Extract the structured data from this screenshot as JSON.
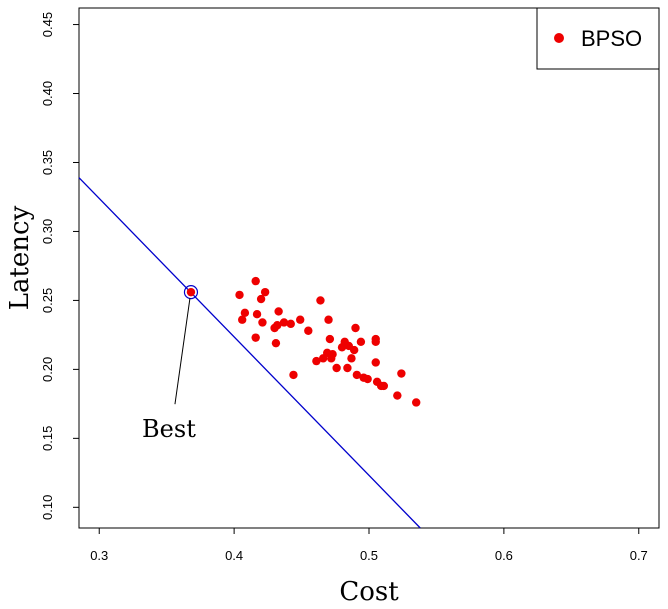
{
  "chart_data": {
    "type": "scatter",
    "xlabel": "Cost",
    "ylabel": "Latency",
    "xlim": [
      0.285,
      0.715
    ],
    "ylim": [
      0.085,
      0.462
    ],
    "xticks": [
      0.3,
      0.4,
      0.5,
      0.6,
      0.7
    ],
    "xtick_labels": [
      "0.3",
      "0.4",
      "0.5",
      "0.6",
      "0.7"
    ],
    "yticks": [
      0.1,
      0.15,
      0.2,
      0.25,
      0.3,
      0.35,
      0.4,
      0.45
    ],
    "ytick_labels": [
      "0.10",
      "0.15",
      "0.20",
      "0.25",
      "0.30",
      "0.35",
      "0.40",
      "0.45"
    ],
    "grid": false,
    "legend_position": "top-right",
    "series": [
      {
        "name": "BPSO",
        "color": "#ee0000",
        "marker": "filled-circle",
        "points": [
          [
            0.404,
            0.254
          ],
          [
            0.406,
            0.236
          ],
          [
            0.408,
            0.241
          ],
          [
            0.416,
            0.264
          ],
          [
            0.417,
            0.24
          ],
          [
            0.416,
            0.223
          ],
          [
            0.42,
            0.251
          ],
          [
            0.421,
            0.234
          ],
          [
            0.423,
            0.256
          ],
          [
            0.43,
            0.23
          ],
          [
            0.431,
            0.219
          ],
          [
            0.432,
            0.232
          ],
          [
            0.433,
            0.242
          ],
          [
            0.437,
            0.234
          ],
          [
            0.442,
            0.233
          ],
          [
            0.444,
            0.196
          ],
          [
            0.449,
            0.236
          ],
          [
            0.455,
            0.228
          ],
          [
            0.461,
            0.206
          ],
          [
            0.464,
            0.25
          ],
          [
            0.466,
            0.208
          ],
          [
            0.469,
            0.212
          ],
          [
            0.47,
            0.236
          ],
          [
            0.471,
            0.222
          ],
          [
            0.472,
            0.208
          ],
          [
            0.473,
            0.211
          ],
          [
            0.476,
            0.201
          ],
          [
            0.48,
            0.216
          ],
          [
            0.482,
            0.22
          ],
          [
            0.484,
            0.201
          ],
          [
            0.485,
            0.217
          ],
          [
            0.487,
            0.208
          ],
          [
            0.489,
            0.214
          ],
          [
            0.49,
            0.23
          ],
          [
            0.491,
            0.196
          ],
          [
            0.494,
            0.22
          ],
          [
            0.496,
            0.194
          ],
          [
            0.499,
            0.193
          ],
          [
            0.505,
            0.222
          ],
          [
            0.505,
            0.22
          ],
          [
            0.505,
            0.205
          ],
          [
            0.506,
            0.191
          ],
          [
            0.509,
            0.188
          ],
          [
            0.511,
            0.188
          ],
          [
            0.521,
            0.181
          ],
          [
            0.524,
            0.197
          ],
          [
            0.535,
            0.176
          ]
        ]
      }
    ],
    "best_point": [
      0.368,
      0.256
    ],
    "line": {
      "color": "#0000cc",
      "x1": 0.285,
      "y1": 0.339,
      "x2": 0.538,
      "y2": 0.085
    },
    "annotations": [
      {
        "text": "Best",
        "x": 0.368,
        "y": 0.256
      }
    ]
  }
}
